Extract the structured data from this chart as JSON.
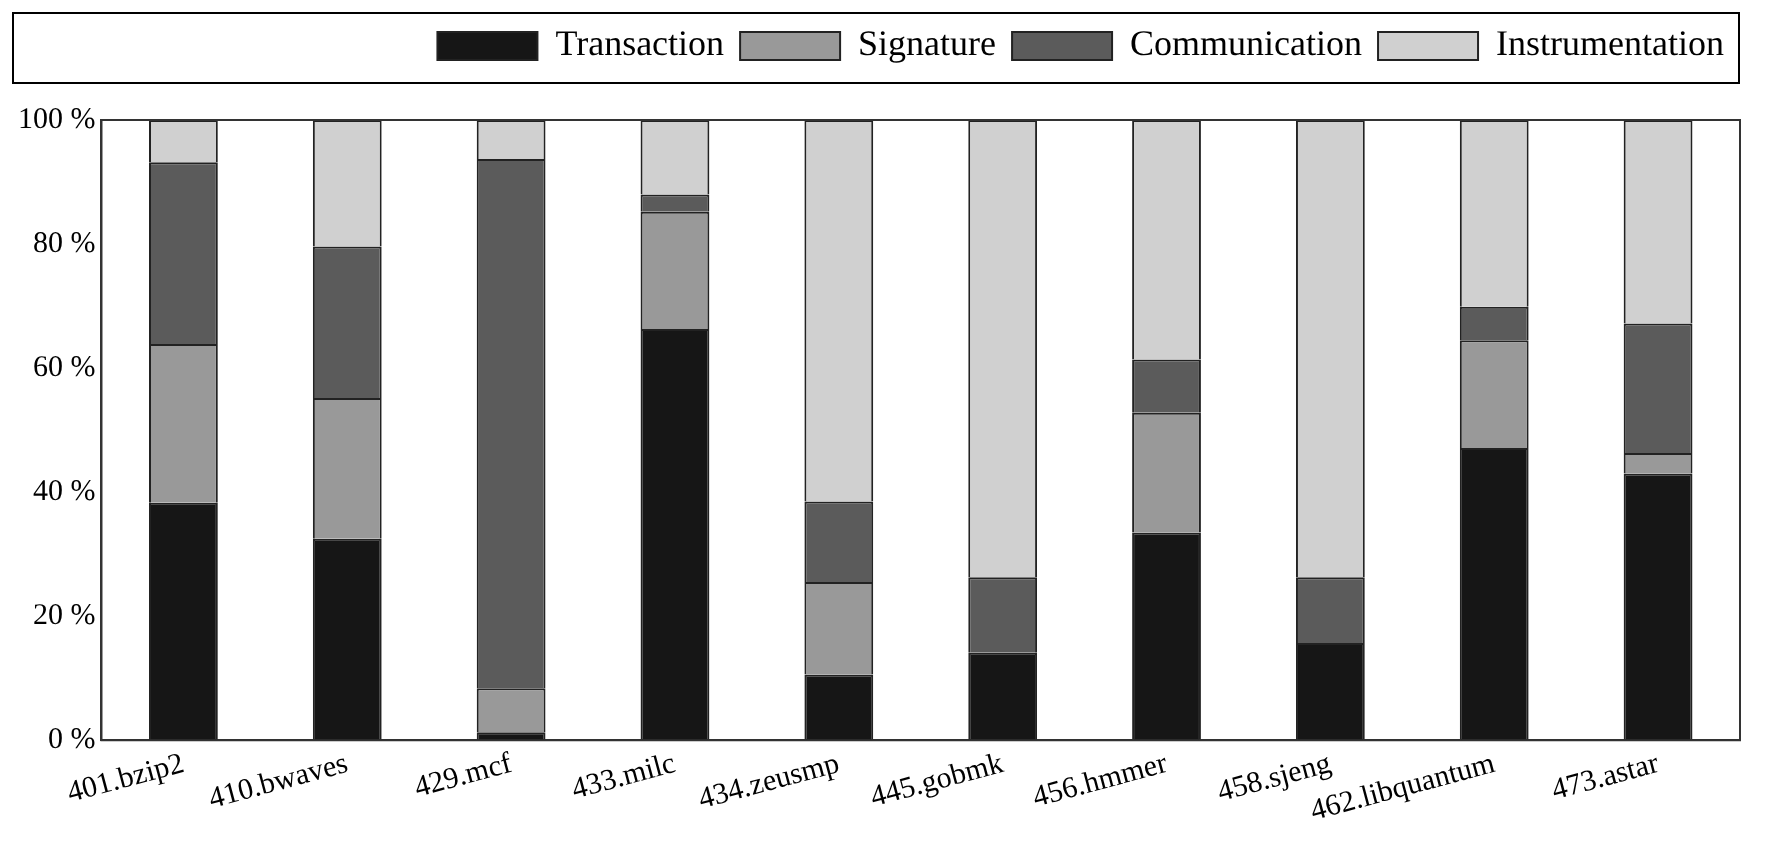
{
  "chart_data": {
    "type": "bar",
    "stacked": true,
    "categories": [
      "401.bzip2",
      "410.bwaves",
      "429.mcf",
      "433.milc",
      "434.zeusmp",
      "445.gobmk",
      "456.hmmer",
      "458.sjeng",
      "462.libquantum",
      "473.astar"
    ],
    "series": [
      {
        "name": "Transaction",
        "color": "#161616",
        "values": [
          38.3,
          32.5,
          1.3,
          66.3,
          10.6,
          14.1,
          33.5,
          15.7,
          47.1,
          43.0
        ]
      },
      {
        "name": "Signature",
        "color": "#999999",
        "values": [
          25.6,
          22.7,
          7.1,
          18.9,
          14.9,
          0,
          19.3,
          0,
          17.4,
          3.3
        ]
      },
      {
        "name": "Communication",
        "color": "#5b5b5b",
        "values": [
          29.3,
          24.4,
          85.3,
          2.8,
          13.0,
          12.2,
          8.6,
          10.6,
          5.4,
          20.9
        ]
      },
      {
        "name": "Instrumentation",
        "color": "#d0d0d0",
        "values": [
          6.8,
          20.4,
          6.3,
          12.0,
          61.5,
          73.7,
          38.6,
          73.7,
          30.1,
          32.8
        ]
      }
    ],
    "ylim": [
      0,
      100
    ],
    "yticks": [
      {
        "value": 0,
        "label": "0 %"
      },
      {
        "value": 20,
        "label": "20 %"
      },
      {
        "value": 40,
        "label": "40 %"
      },
      {
        "value": 60,
        "label": "60 %"
      },
      {
        "value": 80,
        "label": "80 %"
      },
      {
        "value": 100,
        "label": "100 %"
      }
    ],
    "grid": false,
    "legend": "top"
  }
}
